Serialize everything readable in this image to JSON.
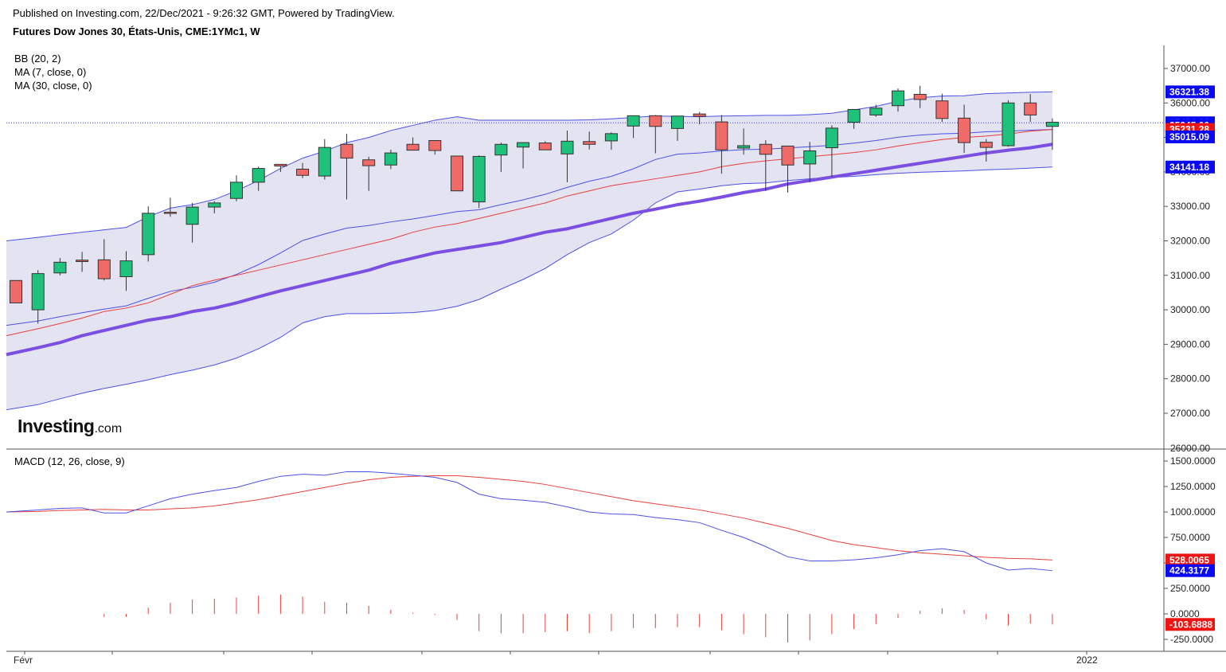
{
  "header": {
    "published": "Published on Investing.com, 22/Dec/2021 - 9:26:32 GMT, Powered by TradingView.",
    "title": "Futures Dow Jones 30, États-Unis, CME:1YMc1, W"
  },
  "legend": {
    "bb": "BB (20, 2)",
    "ma7": "MA (7, close, 0)",
    "ma30": "MA (30, close, 0)",
    "macd": "MACD (12, 26, close, 9)"
  },
  "logo": {
    "brand": "Investing",
    "suffix": ".com"
  },
  "colors": {
    "up": "#1fc27a",
    "down": "#f06b67",
    "bb_band": "#4b52e3",
    "bb_fill": "#e3e3f2",
    "ma7": "#e8403c",
    "ma30": "#7b4fe2",
    "macd": "#4b52e3",
    "signal": "#e8403c",
    "tag_blue": "#0a0af0",
    "tag_red": "#ee1414"
  },
  "chart_data": [
    {
      "type": "candlestick",
      "title": "Futures Dow Jones 30, États-Unis, CME:1YMc1, W",
      "y_ticks": [
        27000,
        28000,
        29000,
        30000,
        31000,
        32000,
        33000,
        34000,
        35000,
        36000,
        37000
      ],
      "y_tick_labels": [
        "27000.00",
        "28000.00",
        "29000.00",
        "30000.00",
        "31000.00",
        "32000.00",
        "33000.00",
        "34000.00",
        "35000.00",
        "36000.00",
        "37000.00"
      ],
      "y_bottom_partial_label": "26000.00",
      "ylim": [
        26000,
        38000
      ],
      "ohlc": [
        [
          30850,
          30850,
          30200,
          30200
        ],
        [
          30000,
          31150,
          29600,
          31050
        ],
        [
          31070,
          31500,
          31000,
          31380
        ],
        [
          31440,
          31680,
          31100,
          31400
        ],
        [
          31450,
          32050,
          30850,
          30900
        ],
        [
          30960,
          31700,
          30550,
          31420
        ],
        [
          31600,
          33000,
          31400,
          32800
        ],
        [
          32830,
          33250,
          32700,
          32800
        ],
        [
          32480,
          33100,
          31950,
          32980
        ],
        [
          32980,
          33150,
          32800,
          33100
        ],
        [
          33230,
          33900,
          33150,
          33700
        ],
        [
          33700,
          34150,
          33450,
          34100
        ],
        [
          34220,
          34220,
          34000,
          34170
        ],
        [
          34080,
          34260,
          33820,
          33900
        ],
        [
          33880,
          34950,
          33780,
          34710
        ],
        [
          34800,
          35100,
          33200,
          34400
        ],
        [
          34350,
          34440,
          33450,
          34180
        ],
        [
          34200,
          34650,
          34080,
          34550
        ],
        [
          34800,
          35000,
          34660,
          34630
        ],
        [
          34910,
          34910,
          34500,
          34620
        ],
        [
          34460,
          34460,
          33450,
          33450
        ],
        [
          33130,
          34480,
          32950,
          34450
        ],
        [
          34490,
          34850,
          34000,
          34800
        ],
        [
          34720,
          34850,
          34100,
          34850
        ],
        [
          34840,
          34890,
          34660,
          34640
        ],
        [
          34520,
          35200,
          33700,
          34890
        ],
        [
          34880,
          35170,
          34650,
          34800
        ],
        [
          34900,
          35150,
          34640,
          35110
        ],
        [
          35330,
          35600,
          34980,
          35630
        ],
        [
          35630,
          35650,
          34540,
          35320
        ],
        [
          35260,
          35550,
          34900,
          35620
        ],
        [
          35680,
          35740,
          35380,
          35610
        ],
        [
          35450,
          35650,
          33950,
          34640
        ],
        [
          34690,
          35260,
          34500,
          34760
        ],
        [
          34800,
          34920,
          33450,
          34510
        ],
        [
          34750,
          34750,
          33400,
          34200
        ],
        [
          34230,
          34870,
          33700,
          34610
        ],
        [
          34700,
          35350,
          33850,
          35270
        ],
        [
          35440,
          35810,
          35250,
          35810
        ],
        [
          35650,
          35950,
          35600,
          35850
        ],
        [
          35920,
          36420,
          35750,
          36350
        ],
        [
          36250,
          36500,
          35850,
          36100
        ],
        [
          36060,
          36270,
          35450,
          35550
        ],
        [
          35560,
          35950,
          34550,
          34850
        ],
        [
          34860,
          34950,
          34300,
          34710
        ],
        [
          34760,
          36080,
          34730,
          36000
        ],
        [
          36000,
          36260,
          35450,
          35650
        ],
        [
          35320,
          35550,
          34640,
          35440
        ]
      ],
      "bb_upper": [
        32000,
        32100,
        32180,
        32250,
        32320,
        32390,
        32700,
        32950,
        33050,
        33200,
        33450,
        33750,
        34100,
        34400,
        34600,
        34850,
        35000,
        35200,
        35350,
        35500,
        35600,
        35500,
        35500,
        35500,
        35500,
        35500,
        35510,
        35540,
        35580,
        35620,
        35610,
        35600,
        35620,
        35630,
        35640,
        35640,
        35660,
        35700,
        35800,
        35900,
        36050,
        36150,
        36200,
        36210,
        36270,
        36290,
        36310,
        36321
      ],
      "bb_lower": [
        27100,
        27250,
        27420,
        27580,
        27720,
        27840,
        27970,
        28120,
        28250,
        28400,
        28600,
        28870,
        29200,
        29620,
        29800,
        29890,
        29890,
        29900,
        29920,
        29980,
        30100,
        30300,
        30600,
        30880,
        31200,
        31600,
        31950,
        32200,
        32600,
        33100,
        33420,
        33500,
        33600,
        33660,
        33680,
        33750,
        33800,
        33840,
        33870,
        33920,
        33960,
        33990,
        34010,
        34030,
        34060,
        34080,
        34110,
        34141
      ],
      "ma7": [
        29250,
        29450,
        29600,
        29760,
        29950,
        30050,
        30200,
        30450,
        30700,
        30860,
        31000,
        31150,
        31300,
        31450,
        31600,
        31750,
        31900,
        32050,
        32250,
        32400,
        32500,
        32650,
        32800,
        32950,
        33100,
        33300,
        33450,
        33600,
        33700,
        33800,
        33900,
        34000,
        34150,
        34250,
        34320,
        34380,
        34440,
        34500,
        34560,
        34640,
        34750,
        34850,
        34940,
        35000,
        35040,
        35100,
        35180,
        35231
      ],
      "ma30": [
        28700,
        28900,
        29050,
        29250,
        29400,
        29550,
        29700,
        29800,
        29950,
        30050,
        30200,
        30380,
        30550,
        30700,
        30850,
        31000,
        31150,
        31350,
        31500,
        31650,
        31750,
        31850,
        31950,
        32100,
        32250,
        32350,
        32500,
        32650,
        32800,
        32920,
        33050,
        33150,
        33270,
        33400,
        33500,
        33650,
        33750,
        33850,
        33950,
        34050,
        34150,
        34250,
        34350,
        34450,
        34550,
        34630,
        34700,
        34800
      ]
    },
    {
      "type": "macd",
      "title": "MACD (12, 26, close, 9)",
      "y_ticks": [
        -250,
        0,
        250,
        500,
        750,
        1000,
        1250,
        1500
      ],
      "y_tick_labels": [
        "-250.0000",
        "0.0000",
        "250.0000",
        "500.0000",
        "750.0000",
        "1000.0000",
        "1250.0000",
        "1500.0000"
      ],
      "ylim": [
        -325,
        1550
      ],
      "macd": [
        1000,
        1020,
        1035,
        1040,
        990,
        990,
        1060,
        1130,
        1175,
        1210,
        1240,
        1300,
        1350,
        1370,
        1360,
        1395,
        1395,
        1380,
        1360,
        1340,
        1290,
        1175,
        1130,
        1115,
        1095,
        1050,
        1000,
        980,
        975,
        945,
        925,
        895,
        820,
        750,
        660,
        560,
        520,
        520,
        530,
        550,
        580,
        620,
        640,
        610,
        500,
        430,
        445,
        424.3177
      ],
      "signal": [
        1000,
        1005,
        1015,
        1020,
        1025,
        1020,
        1020,
        1030,
        1040,
        1060,
        1090,
        1120,
        1160,
        1200,
        1240,
        1280,
        1315,
        1340,
        1350,
        1355,
        1355,
        1340,
        1320,
        1300,
        1270,
        1230,
        1190,
        1150,
        1110,
        1080,
        1050,
        1020,
        980,
        940,
        890,
        840,
        780,
        720,
        680,
        650,
        620,
        600,
        585,
        570,
        555,
        545,
        540,
        528.0065
      ],
      "histogram": [
        0,
        0,
        0,
        0,
        -30,
        -30,
        60,
        110,
        140,
        150,
        160,
        180,
        190,
        170,
        120,
        110,
        80,
        40,
        10,
        -10,
        -60,
        -170,
        -190,
        -190,
        -180,
        -170,
        -190,
        -170,
        -140,
        -140,
        -130,
        -130,
        -160,
        -200,
        -230,
        -280,
        -260,
        -200,
        -150,
        -100,
        -40,
        30,
        55,
        40,
        -55,
        -115,
        -95,
        -103.6888
      ]
    }
  ],
  "x_labels": [
    "Févr",
    "2022"
  ],
  "price_tags": [
    {
      "label": "36321.38",
      "value": 36321.38,
      "color": "#0a0af0"
    },
    {
      "label": "35424.83",
      "value": 35424.83,
      "color": "#0a0af0"
    },
    {
      "label": "35345.00",
      "value": 35345.0,
      "color": "#0a0af0"
    },
    {
      "label": "35231.28",
      "value": 35231.28,
      "color": "#ee1414"
    },
    {
      "label": "35015.09",
      "value": 35015.09,
      "color": "#0a0af0"
    },
    {
      "label": "34141.18",
      "value": 34141.18,
      "color": "#0a0af0"
    }
  ],
  "macd_tags": [
    {
      "label": "528.0065",
      "value": 528.0065,
      "color": "#ee1414"
    },
    {
      "label": "424.3177",
      "value": 424.3177,
      "color": "#0a0af0"
    },
    {
      "label": "-103.6888",
      "value": -103.6888,
      "color": "#ee1414"
    }
  ],
  "last_price": 35424.83
}
